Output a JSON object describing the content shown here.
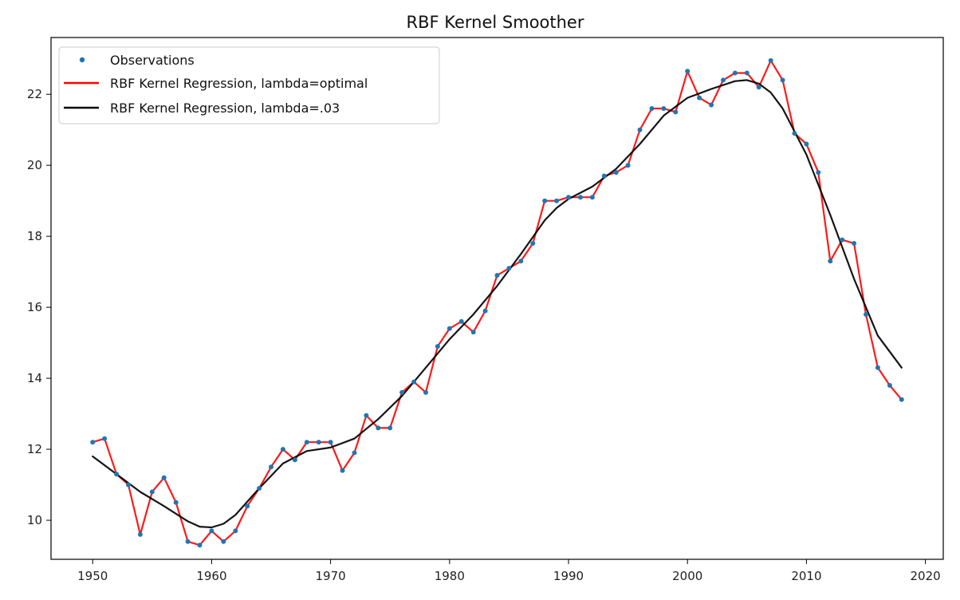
{
  "chart_data": {
    "type": "line",
    "title": "RBF Kernel Smoother",
    "xlabel": "",
    "ylabel": "",
    "xlim": [
      1946.5,
      2021.5
    ],
    "ylim": [
      8.9,
      23.6
    ],
    "xticks": [
      1950,
      1960,
      1970,
      1980,
      1990,
      2000,
      2010,
      2020
    ],
    "yticks": [
      10,
      12,
      14,
      16,
      18,
      20,
      22
    ],
    "grid": false,
    "legend_position": "top-left",
    "colors": {
      "observations": "#1f77b4",
      "optimal": "#ff0000",
      "fixed": "#000000"
    },
    "series": [
      {
        "name": "Observations",
        "kind": "scatter",
        "x": [
          1950,
          1951,
          1952,
          1953,
          1954,
          1955,
          1956,
          1957,
          1958,
          1959,
          1960,
          1961,
          1962,
          1963,
          1964,
          1965,
          1966,
          1967,
          1968,
          1969,
          1970,
          1971,
          1972,
          1973,
          1974,
          1975,
          1976,
          1977,
          1978,
          1979,
          1980,
          1981,
          1982,
          1983,
          1984,
          1985,
          1986,
          1987,
          1988,
          1989,
          1990,
          1991,
          1992,
          1993,
          1994,
          1995,
          1996,
          1997,
          1998,
          1999,
          2000,
          2001,
          2002,
          2003,
          2004,
          2005,
          2006,
          2007,
          2008,
          2009,
          2010,
          2011,
          2012,
          2013,
          2014,
          2015,
          2016,
          2017,
          2018
        ],
        "values": [
          12.2,
          12.3,
          11.3,
          11.0,
          9.6,
          10.8,
          11.2,
          10.5,
          9.4,
          9.3,
          9.7,
          9.4,
          9.7,
          10.4,
          10.9,
          11.5,
          12.0,
          11.7,
          12.2,
          12.2,
          12.2,
          11.4,
          11.9,
          12.95,
          12.6,
          12.6,
          13.6,
          13.9,
          13.6,
          14.9,
          15.4,
          15.6,
          15.3,
          15.9,
          16.9,
          17.1,
          17.3,
          17.8,
          19.0,
          19.0,
          19.1,
          19.1,
          19.1,
          19.7,
          19.8,
          20.0,
          21.0,
          21.6,
          21.6,
          21.5,
          22.65,
          21.9,
          21.7,
          22.4,
          22.6,
          22.6,
          22.2,
          22.95,
          22.4,
          20.9,
          20.6,
          19.8,
          17.3,
          17.9,
          17.8,
          15.8,
          14.3,
          13.8,
          13.4
        ]
      },
      {
        "name": "RBF Kernel Regression, lambda=optimal",
        "kind": "line",
        "x": [
          1950,
          1951,
          1952,
          1953,
          1954,
          1955,
          1956,
          1957,
          1958,
          1959,
          1960,
          1961,
          1962,
          1963,
          1964,
          1965,
          1966,
          1967,
          1968,
          1969,
          1970,
          1971,
          1972,
          1973,
          1974,
          1975,
          1976,
          1977,
          1978,
          1979,
          1980,
          1981,
          1982,
          1983,
          1984,
          1985,
          1986,
          1987,
          1988,
          1989,
          1990,
          1991,
          1992,
          1993,
          1994,
          1995,
          1996,
          1997,
          1998,
          1999,
          2000,
          2001,
          2002,
          2003,
          2004,
          2005,
          2006,
          2007,
          2008,
          2009,
          2010,
          2011,
          2012,
          2013,
          2014,
          2015,
          2016,
          2017,
          2018
        ],
        "values": [
          12.2,
          12.3,
          11.3,
          11.0,
          9.6,
          10.8,
          11.2,
          10.5,
          9.4,
          9.3,
          9.7,
          9.4,
          9.7,
          10.4,
          10.9,
          11.5,
          12.0,
          11.7,
          12.2,
          12.2,
          12.2,
          11.4,
          11.9,
          12.95,
          12.6,
          12.6,
          13.6,
          13.9,
          13.6,
          14.9,
          15.4,
          15.6,
          15.3,
          15.9,
          16.9,
          17.1,
          17.3,
          17.8,
          19.0,
          19.0,
          19.1,
          19.1,
          19.1,
          19.7,
          19.8,
          20.0,
          21.0,
          21.6,
          21.6,
          21.5,
          22.65,
          21.9,
          21.7,
          22.4,
          22.6,
          22.6,
          22.2,
          22.95,
          22.4,
          20.9,
          20.6,
          19.8,
          17.3,
          17.9,
          17.8,
          15.8,
          14.3,
          13.8,
          13.4
        ]
      },
      {
        "name": "RBF Kernel Regression, lambda=.03",
        "kind": "line",
        "x": [
          1950,
          1952,
          1954,
          1956,
          1958,
          1959,
          1960,
          1961,
          1962,
          1964,
          1966,
          1968,
          1970,
          1972,
          1974,
          1976,
          1978,
          1980,
          1982,
          1984,
          1986,
          1988,
          1989,
          1990,
          1992,
          1994,
          1996,
          1998,
          2000,
          2002,
          2004,
          2005,
          2006,
          2007,
          2008,
          2010,
          2012,
          2014,
          2016,
          2018
        ],
        "values": [
          11.8,
          11.3,
          10.8,
          10.4,
          9.97,
          9.82,
          9.8,
          9.9,
          10.15,
          10.9,
          11.6,
          11.95,
          12.05,
          12.3,
          12.85,
          13.5,
          14.3,
          15.1,
          15.8,
          16.6,
          17.5,
          18.45,
          18.8,
          19.05,
          19.4,
          19.9,
          20.6,
          21.4,
          21.9,
          22.15,
          22.37,
          22.4,
          22.3,
          22.05,
          21.6,
          20.3,
          18.6,
          16.8,
          15.2,
          14.3
        ]
      }
    ]
  }
}
